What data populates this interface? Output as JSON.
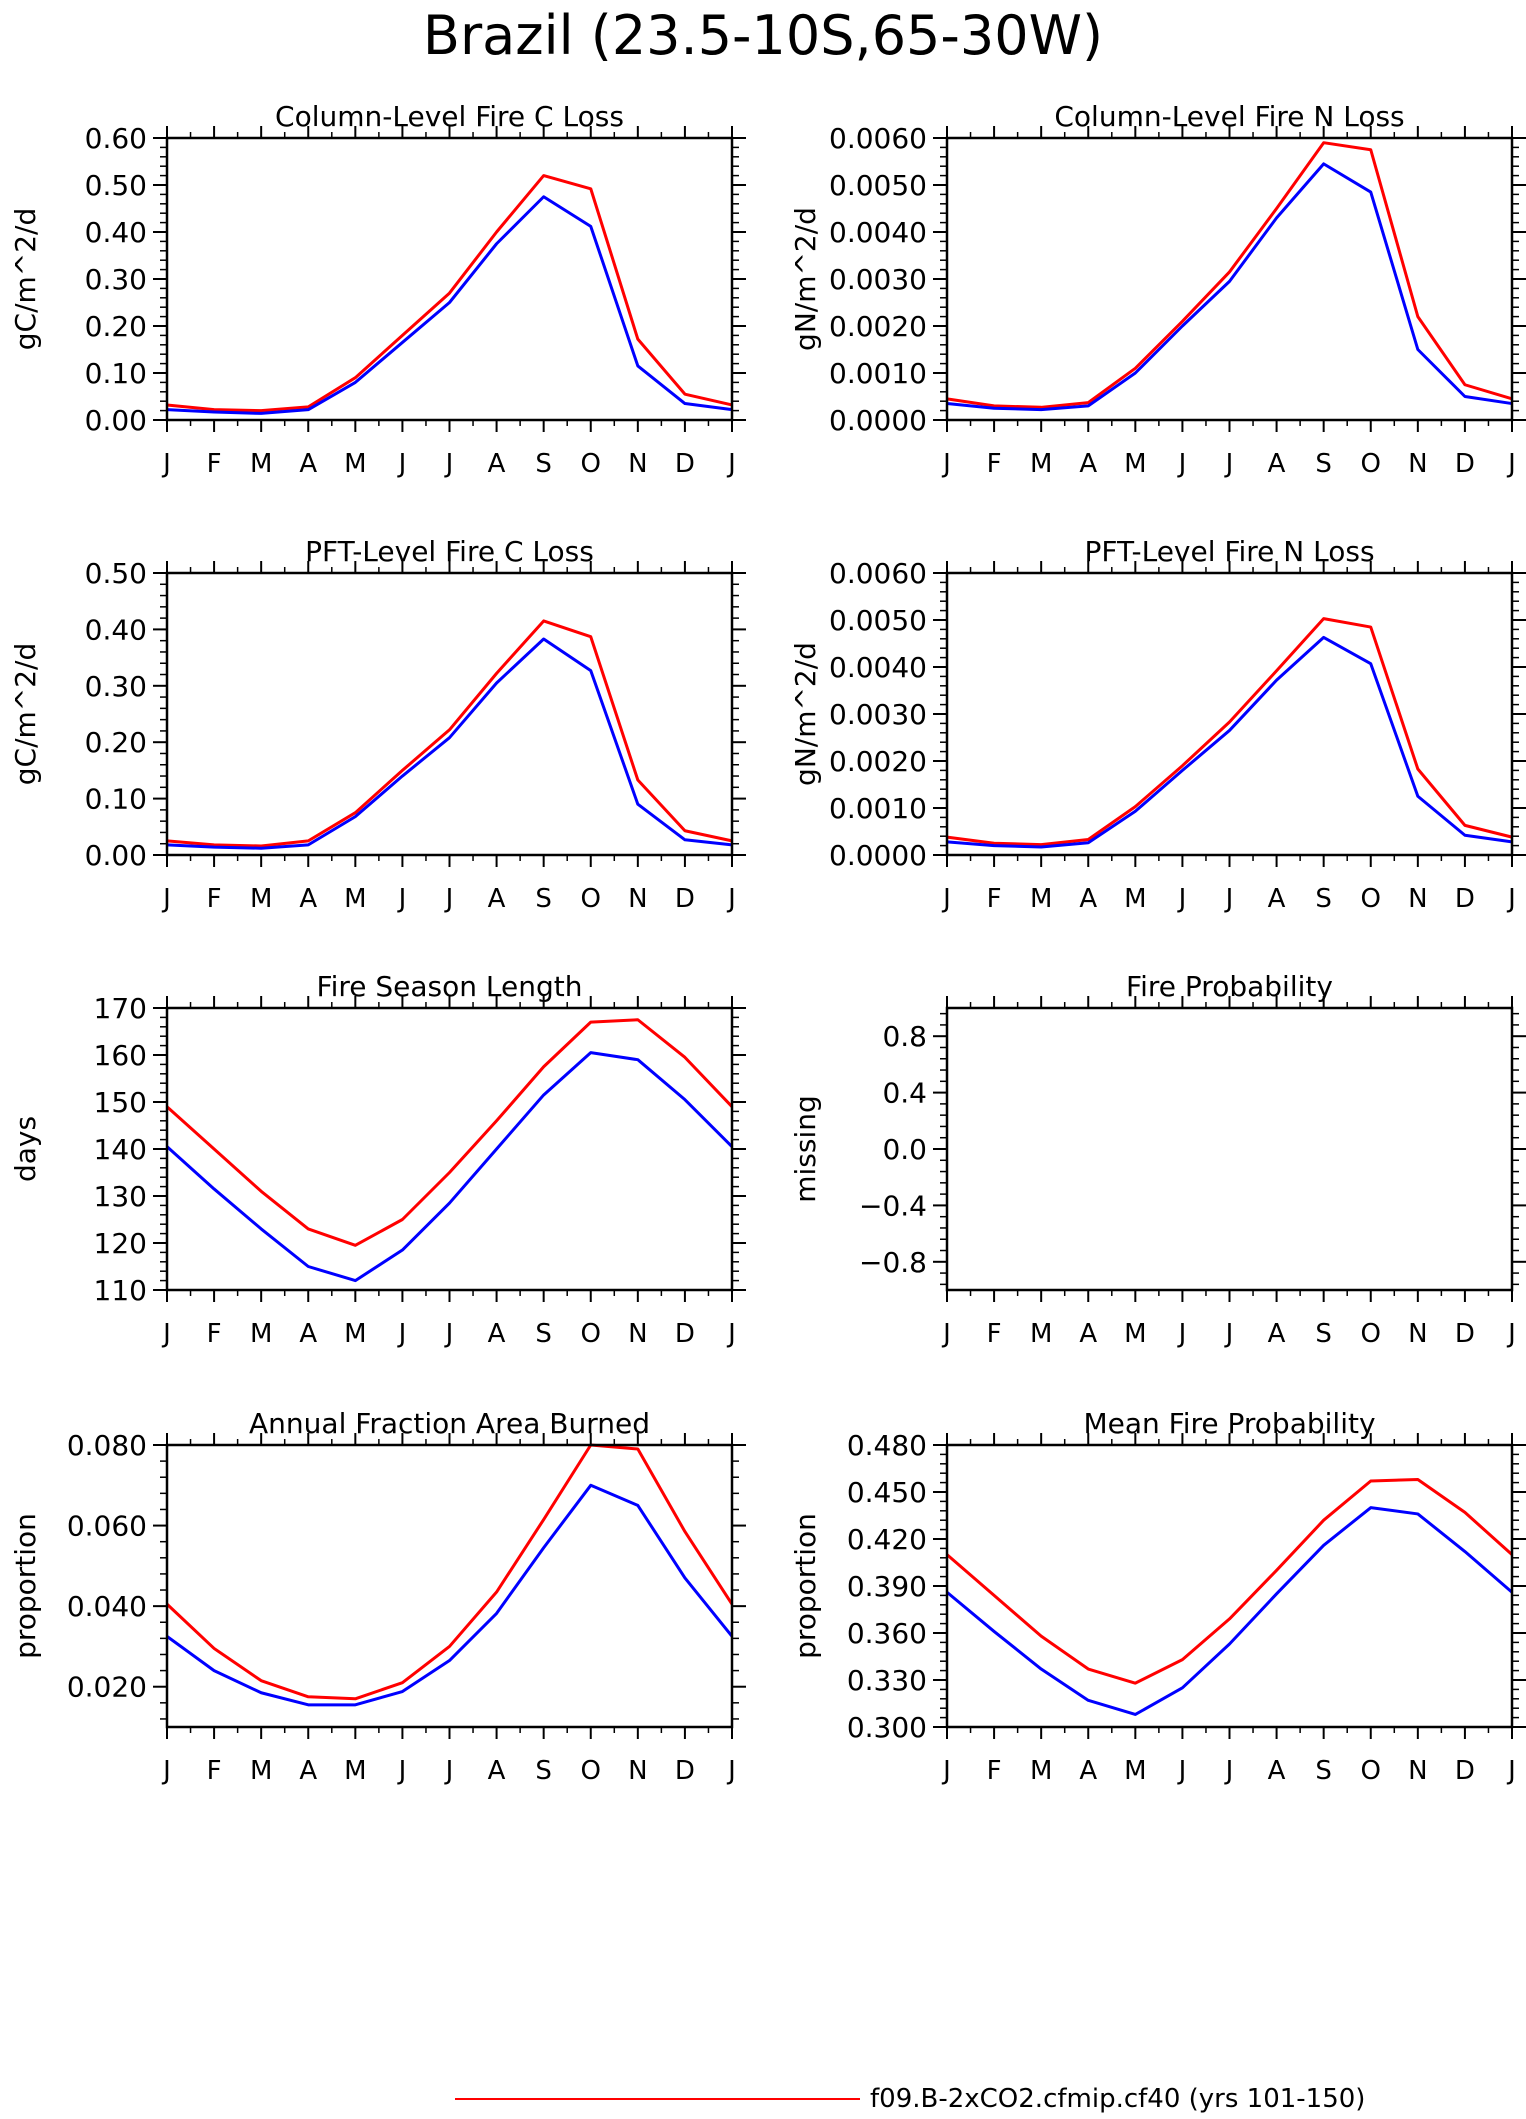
{
  "page": {
    "title": "Brazil (23.5-10S,65-30W)"
  },
  "legend": {
    "entries": [
      {
        "label": "f09.B-2xCO2.cfmip.cf40 (yrs 101-150)",
        "color": "#ff0000"
      }
    ]
  },
  "colors": {
    "series_red": "#ff0000",
    "series_blue": "#0000ff"
  },
  "chart_data": [
    {
      "type": "line",
      "title": "Column-Level Fire C Loss",
      "ylabel": "gC/m^2/d",
      "ylim": [
        0,
        0.6
      ],
      "yticks": [
        0,
        0.1,
        0.2,
        0.3,
        0.4,
        0.5,
        0.6
      ],
      "ytick_labels": [
        "0.00",
        "0.10",
        "0.20",
        "0.30",
        "0.40",
        "0.50",
        "0.60"
      ],
      "categories": [
        "J",
        "F",
        "M",
        "A",
        "M",
        "J",
        "J",
        "A",
        "S",
        "O",
        "N",
        "D",
        "J"
      ],
      "series": [
        {
          "color": "#ff0000",
          "values": [
            0.032,
            0.022,
            0.02,
            0.028,
            0.09,
            0.18,
            0.27,
            0.4,
            0.52,
            0.492,
            0.172,
            0.055,
            0.032
          ]
        },
        {
          "color": "#0000ff",
          "values": [
            0.022,
            0.017,
            0.014,
            0.022,
            0.08,
            0.165,
            0.25,
            0.375,
            0.475,
            0.412,
            0.115,
            0.035,
            0.022
          ]
        }
      ]
    },
    {
      "type": "line",
      "title": "Column-Level Fire N Loss",
      "ylabel": "gN/m^2/d",
      "ylim": [
        0,
        0.006
      ],
      "yticks": [
        0,
        0.001,
        0.002,
        0.003,
        0.004,
        0.005,
        0.006
      ],
      "ytick_labels": [
        "0.0000",
        "0.0010",
        "0.0020",
        "0.0030",
        "0.0040",
        "0.0050",
        "0.0060"
      ],
      "categories": [
        "J",
        "F",
        "M",
        "A",
        "M",
        "J",
        "J",
        "A",
        "S",
        "O",
        "N",
        "D",
        "J"
      ],
      "series": [
        {
          "color": "#ff0000",
          "values": [
            0.00045,
            0.0003,
            0.00027,
            0.00037,
            0.0011,
            0.0021,
            0.00315,
            0.0045,
            0.0059,
            0.00575,
            0.0022,
            0.00075,
            0.00045
          ]
        },
        {
          "color": "#0000ff",
          "values": [
            0.00035,
            0.00025,
            0.00022,
            0.0003,
            0.001,
            0.002,
            0.00295,
            0.0043,
            0.00545,
            0.00485,
            0.0015,
            0.0005,
            0.00035
          ]
        }
      ]
    },
    {
      "type": "line",
      "title": "PFT-Level Fire C Loss",
      "ylabel": "gC/m^2/d",
      "ylim": [
        0,
        0.5
      ],
      "yticks": [
        0,
        0.1,
        0.2,
        0.3,
        0.4,
        0.5
      ],
      "ytick_labels": [
        "0.00",
        "0.10",
        "0.20",
        "0.30",
        "0.40",
        "0.50"
      ],
      "categories": [
        "J",
        "F",
        "M",
        "A",
        "M",
        "J",
        "J",
        "A",
        "S",
        "O",
        "N",
        "D",
        "J"
      ],
      "series": [
        {
          "color": "#ff0000",
          "values": [
            0.025,
            0.018,
            0.016,
            0.025,
            0.075,
            0.15,
            0.222,
            0.322,
            0.415,
            0.387,
            0.133,
            0.043,
            0.025
          ]
        },
        {
          "color": "#0000ff",
          "values": [
            0.018,
            0.014,
            0.012,
            0.018,
            0.068,
            0.14,
            0.208,
            0.305,
            0.383,
            0.327,
            0.09,
            0.027,
            0.018
          ]
        }
      ]
    },
    {
      "type": "line",
      "title": "PFT-Level Fire N Loss",
      "ylabel": "gN/m^2/d",
      "ylim": [
        0,
        0.006
      ],
      "yticks": [
        0,
        0.001,
        0.002,
        0.003,
        0.004,
        0.005,
        0.006
      ],
      "ytick_labels": [
        "0.0000",
        "0.0010",
        "0.0020",
        "0.0030",
        "0.0040",
        "0.0050",
        "0.0060"
      ],
      "categories": [
        "J",
        "F",
        "M",
        "A",
        "M",
        "J",
        "J",
        "A",
        "S",
        "O",
        "N",
        "D",
        "J"
      ],
      "series": [
        {
          "color": "#ff0000",
          "values": [
            0.00038,
            0.00025,
            0.00022,
            0.00033,
            0.00103,
            0.0019,
            0.00283,
            0.00392,
            0.00503,
            0.00485,
            0.00183,
            0.00063,
            0.00038
          ]
        },
        {
          "color": "#0000ff",
          "values": [
            0.00028,
            0.0002,
            0.00017,
            0.00026,
            0.00093,
            0.0018,
            0.00265,
            0.00372,
            0.00463,
            0.00407,
            0.00125,
            0.00042,
            0.00028
          ]
        }
      ]
    },
    {
      "type": "line",
      "title": "Fire Season Length",
      "ylabel": "days",
      "ylim": [
        110,
        170
      ],
      "yticks": [
        110,
        120,
        130,
        140,
        150,
        160,
        170
      ],
      "ytick_labels": [
        "110",
        "120",
        "130",
        "140",
        "150",
        "160",
        "170"
      ],
      "categories": [
        "J",
        "F",
        "M",
        "A",
        "M",
        "J",
        "J",
        "A",
        "S",
        "O",
        "N",
        "D",
        "J"
      ],
      "series": [
        {
          "color": "#ff0000",
          "values": [
            149,
            140,
            131,
            123,
            119.5,
            125,
            135,
            146,
            157.5,
            167,
            167.5,
            159.5,
            149
          ]
        },
        {
          "color": "#0000ff",
          "values": [
            140.5,
            131.5,
            123,
            115,
            112,
            118.5,
            128.5,
            140,
            151.5,
            160.5,
            159,
            150.5,
            140.5
          ]
        }
      ]
    },
    {
      "type": "line",
      "title": "Fire Probability",
      "ylabel": "missing",
      "ylim": [
        -1,
        1
      ],
      "yticks": [
        -0.8,
        -0.4,
        0.0,
        0.4,
        0.8
      ],
      "ytick_labels": [
        "−0.8",
        "−0.4",
        "0.0",
        "0.4",
        "0.8"
      ],
      "categories": [
        "J",
        "F",
        "M",
        "A",
        "M",
        "J",
        "J",
        "A",
        "S",
        "O",
        "N",
        "D",
        "J"
      ],
      "series": []
    },
    {
      "type": "line",
      "title": "Annual Fraction Area Burned",
      "ylabel": "proportion",
      "ylim": [
        0.01,
        0.08
      ],
      "yticks": [
        0.02,
        0.04,
        0.06,
        0.08
      ],
      "ytick_labels": [
        "0.020",
        "0.040",
        "0.060",
        "0.080"
      ],
      "categories": [
        "J",
        "F",
        "M",
        "A",
        "M",
        "J",
        "J",
        "A",
        "S",
        "O",
        "N",
        "D",
        "J"
      ],
      "series": [
        {
          "color": "#ff0000",
          "values": [
            0.0405,
            0.0295,
            0.0215,
            0.0175,
            0.017,
            0.021,
            0.03,
            0.0435,
            0.0615,
            0.08,
            0.079,
            0.0585,
            0.0405
          ]
        },
        {
          "color": "#0000ff",
          "values": [
            0.0325,
            0.024,
            0.0185,
            0.0155,
            0.0155,
            0.0188,
            0.0265,
            0.0382,
            0.0545,
            0.07,
            0.065,
            0.047,
            0.0325
          ]
        }
      ]
    },
    {
      "type": "line",
      "title": "Mean Fire Probability",
      "ylabel": "proportion",
      "ylim": [
        0.3,
        0.48
      ],
      "yticks": [
        0.3,
        0.33,
        0.36,
        0.39,
        0.42,
        0.45,
        0.48
      ],
      "ytick_labels": [
        "0.300",
        "0.330",
        "0.360",
        "0.390",
        "0.420",
        "0.450",
        "0.480"
      ],
      "categories": [
        "J",
        "F",
        "M",
        "A",
        "M",
        "J",
        "J",
        "A",
        "S",
        "O",
        "N",
        "D",
        "J"
      ],
      "series": [
        {
          "color": "#ff0000",
          "values": [
            0.41,
            0.384,
            0.358,
            0.337,
            0.328,
            0.343,
            0.369,
            0.4,
            0.432,
            0.457,
            0.458,
            0.437,
            0.41
          ]
        },
        {
          "color": "#0000ff",
          "values": [
            0.386,
            0.361,
            0.337,
            0.317,
            0.308,
            0.325,
            0.353,
            0.385,
            0.416,
            0.44,
            0.436,
            0.412,
            0.386
          ]
        }
      ]
    }
  ]
}
